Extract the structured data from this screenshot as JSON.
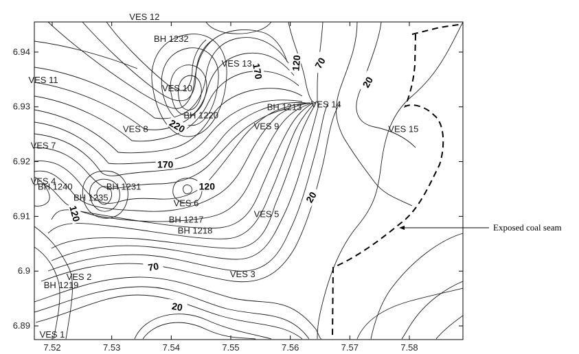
{
  "chart_data": {
    "type": "contour",
    "x_ticks": [
      "7.52",
      "7.53",
      "7.54",
      "7.55",
      "7.56",
      "7.57",
      "7.58"
    ],
    "y_ticks": [
      "6.89",
      "6.9",
      "6.91",
      "6.92",
      "6.93",
      "6.94"
    ],
    "xlim": [
      7.517,
      7.589
    ],
    "ylim": [
      6.8875,
      6.9455
    ],
    "grid": false,
    "points": [
      {
        "label": "VES 12",
        "x": 7.5355,
        "y": 6.9465
      },
      {
        "label": "BH 1232",
        "x": 7.54,
        "y": 6.9425
      },
      {
        "label": "VES 13",
        "x": 7.551,
        "y": 6.938
      },
      {
        "label": "VES 11",
        "x": 7.5185,
        "y": 6.935
      },
      {
        "label": "VES 10",
        "x": 7.541,
        "y": 6.9335
      },
      {
        "label": "BH 1213",
        "x": 7.559,
        "y": 6.93
      },
      {
        "label": "VES 14",
        "x": 7.566,
        "y": 6.9305
      },
      {
        "label": "BH 1220",
        "x": 7.545,
        "y": 6.9285
      },
      {
        "label": "VES 9",
        "x": 7.556,
        "y": 6.9265
      },
      {
        "label": "VES 8",
        "x": 7.534,
        "y": 6.926
      },
      {
        "label": "VES 15",
        "x": 7.579,
        "y": 6.926
      },
      {
        "label": "VES 7",
        "x": 7.5185,
        "y": 6.923
      },
      {
        "label": "VES 4",
        "x": 7.5185,
        "y": 6.9165
      },
      {
        "label": "BH 1240",
        "x": 7.5205,
        "y": 6.9155
      },
      {
        "label": "BH 1231",
        "x": 7.532,
        "y": 6.9155
      },
      {
        "label": "BH 1235",
        "x": 7.5265,
        "y": 6.9135
      },
      {
        "label": "VES 6",
        "x": 7.5425,
        "y": 6.9125
      },
      {
        "label": "VES 5",
        "x": 7.556,
        "y": 6.9105
      },
      {
        "label": "BH 1217",
        "x": 7.5425,
        "y": 6.9095
      },
      {
        "label": "BH 1218",
        "x": 7.544,
        "y": 6.9075
      },
      {
        "label": "VES 3",
        "x": 7.552,
        "y": 6.8995
      },
      {
        "label": "VES 2",
        "x": 7.5245,
        "y": 6.899
      },
      {
        "label": "BH 1219",
        "x": 7.5215,
        "y": 6.8975
      },
      {
        "label": "VES 1",
        "x": 7.52,
        "y": 6.8885
      }
    ],
    "contour_labels": [
      {
        "text": "170",
        "x": 7.5545,
        "y": 6.9365,
        "angle": 80
      },
      {
        "text": "120",
        "x": 7.561,
        "y": 6.938,
        "angle": -85
      },
      {
        "text": "70",
        "x": 7.565,
        "y": 6.938,
        "angle": -60
      },
      {
        "text": "20",
        "x": 7.573,
        "y": 6.9345,
        "angle": -60
      },
      {
        "text": "220",
        "x": 7.541,
        "y": 6.9265,
        "angle": 30
      },
      {
        "text": "170",
        "x": 7.539,
        "y": 6.9195,
        "angle": 0
      },
      {
        "text": "120",
        "x": 7.546,
        "y": 6.9155,
        "angle": 0
      },
      {
        "text": "20",
        "x": 7.5635,
        "y": 6.9135,
        "angle": -60
      },
      {
        "text": "120",
        "x": 7.5238,
        "y": 6.9105,
        "angle": 75
      },
      {
        "text": "70",
        "x": 7.537,
        "y": 6.9008,
        "angle": -10
      },
      {
        "text": "20",
        "x": 7.541,
        "y": 6.8935,
        "angle": 10
      }
    ],
    "annotation": {
      "text": "Exposed coal seam"
    }
  }
}
